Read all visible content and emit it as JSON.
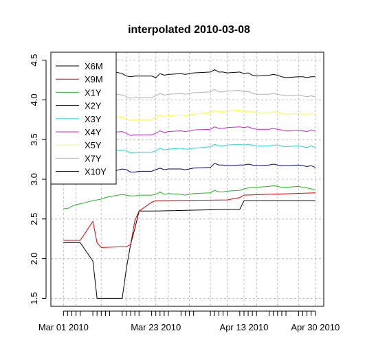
{
  "chart_data": {
    "type": "line",
    "title": "interpolated 2010-03-08",
    "xlabel": "",
    "ylabel": "",
    "ylim": [
      1.4,
      4.6
    ],
    "xlim": [
      "2010-02-26",
      "2010-05-02"
    ],
    "y_ticks": [
      1.5,
      2.0,
      2.5,
      3.0,
      3.5,
      4.0,
      4.5
    ],
    "y_tick_labels": [
      "1.5",
      "2.0",
      "2.5",
      "3.0",
      "3.5",
      "4.0",
      "4.5"
    ],
    "x_ticks": [
      "2010-03-01",
      "2010-03-23",
      "2010-04-13",
      "2010-04-30"
    ],
    "x_tick_labels": [
      "Mar 01 2010",
      "Mar 23 2010",
      "Apr 13 2010",
      "Apr 30 2010"
    ],
    "x_minor_ticks": [
      "2010-03-01",
      "2010-03-02",
      "2010-03-03",
      "2010-03-04",
      "2010-03-05",
      "2010-03-08",
      "2010-03-09",
      "2010-03-10",
      "2010-03-11",
      "2010-03-12",
      "2010-03-15",
      "2010-03-16",
      "2010-03-17",
      "2010-03-18",
      "2010-03-19",
      "2010-03-22",
      "2010-03-23",
      "2010-03-24",
      "2010-03-25",
      "2010-03-26",
      "2010-03-29",
      "2010-03-30",
      "2010-03-31",
      "2010-04-01",
      "2010-04-05",
      "2010-04-06",
      "2010-04-07",
      "2010-04-08",
      "2010-04-09",
      "2010-04-12",
      "2010-04-13",
      "2010-04-14",
      "2010-04-15",
      "2010-04-16",
      "2010-04-19",
      "2010-04-20",
      "2010-04-21",
      "2010-04-22",
      "2010-04-23",
      "2010-04-26",
      "2010-04-27",
      "2010-04-28",
      "2010-04-29",
      "2010-04-30"
    ],
    "x_grid": [
      "2010-03-01",
      "2010-03-04",
      "2010-03-10",
      "2010-03-16",
      "2010-03-19",
      "2010-03-23",
      "2010-03-26",
      "2010-03-31",
      "2010-04-05",
      "2010-04-09",
      "2010-04-13",
      "2010-04-16",
      "2010-04-21",
      "2010-04-26",
      "2010-04-30"
    ],
    "grid": true,
    "grid_color": "#bebebe",
    "legend": {
      "placement": "top-left"
    },
    "series": [
      {
        "name": "X6M",
        "color": "#000000",
        "x": [
          "2010-03-01",
          "2010-03-05",
          "2010-03-08",
          "2010-03-09",
          "2010-03-15",
          "2010-03-16",
          "2010-03-17",
          "2010-03-18",
          "2010-03-19",
          "2010-03-22",
          "2010-03-23",
          "2010-04-09",
          "2010-04-12",
          "2010-04-13",
          "2010-04-30"
        ],
        "y": [
          2.2,
          2.2,
          1.97,
          1.5,
          1.5,
          1.88,
          2.18,
          2.38,
          2.6,
          2.6,
          2.6,
          2.62,
          2.62,
          2.73,
          2.73
        ]
      },
      {
        "name": "X9M",
        "color": "#df0000",
        "x": [
          "2010-03-01",
          "2010-03-05",
          "2010-03-08",
          "2010-03-09",
          "2010-03-10",
          "2010-03-15",
          "2010-03-16",
          "2010-03-17",
          "2010-03-18",
          "2010-03-19",
          "2010-03-22",
          "2010-03-23",
          "2010-04-09",
          "2010-04-12",
          "2010-04-13",
          "2010-04-30"
        ],
        "y": [
          2.23,
          2.23,
          2.47,
          2.2,
          2.14,
          2.15,
          2.15,
          2.18,
          2.48,
          2.6,
          2.71,
          2.73,
          2.74,
          2.77,
          2.8,
          2.83
        ]
      },
      {
        "name": "X1Y",
        "color": "#22b422",
        "x": [
          "2010-03-01",
          "2010-03-02",
          "2010-03-03",
          "2010-03-04",
          "2010-03-05",
          "2010-03-08",
          "2010-03-09",
          "2010-03-10",
          "2010-03-11",
          "2010-03-12",
          "2010-03-15",
          "2010-03-16",
          "2010-03-17",
          "2010-03-18",
          "2010-03-19",
          "2010-03-22",
          "2010-03-23",
          "2010-03-24",
          "2010-03-25",
          "2010-03-26",
          "2010-03-29",
          "2010-03-30",
          "2010-03-31",
          "2010-04-01",
          "2010-04-05",
          "2010-04-06",
          "2010-04-07",
          "2010-04-08",
          "2010-04-09",
          "2010-04-12",
          "2010-04-13",
          "2010-04-14",
          "2010-04-15",
          "2010-04-16",
          "2010-04-19",
          "2010-04-20",
          "2010-04-21",
          "2010-04-22",
          "2010-04-23",
          "2010-04-26",
          "2010-04-27",
          "2010-04-28",
          "2010-04-29",
          "2010-04-30"
        ],
        "y": [
          2.63,
          2.63,
          2.66,
          2.68,
          2.69,
          2.73,
          2.74,
          2.75,
          2.77,
          2.78,
          2.81,
          2.8,
          2.79,
          2.79,
          2.8,
          2.8,
          2.81,
          2.84,
          2.81,
          2.82,
          2.81,
          2.8,
          2.81,
          2.82,
          2.83,
          2.86,
          2.84,
          2.84,
          2.85,
          2.86,
          2.88,
          2.89,
          2.9,
          2.9,
          2.91,
          2.92,
          2.91,
          2.9,
          2.9,
          2.91,
          2.9,
          2.89,
          2.88,
          2.86
        ]
      },
      {
        "name": "X2Y",
        "color": "#000080",
        "x": [
          "2010-03-01",
          "2010-03-02",
          "2010-03-03",
          "2010-03-04",
          "2010-03-05",
          "2010-03-08",
          "2010-03-09",
          "2010-03-10",
          "2010-03-11",
          "2010-03-12",
          "2010-03-15",
          "2010-03-16",
          "2010-03-17",
          "2010-03-18",
          "2010-03-19",
          "2010-03-22",
          "2010-03-23",
          "2010-03-24",
          "2010-03-25",
          "2010-03-26",
          "2010-03-29",
          "2010-03-30",
          "2010-03-31",
          "2010-04-01",
          "2010-04-05",
          "2010-04-06",
          "2010-04-07",
          "2010-04-08",
          "2010-04-09",
          "2010-04-12",
          "2010-04-13",
          "2010-04-14",
          "2010-04-15",
          "2010-04-16",
          "2010-04-19",
          "2010-04-20",
          "2010-04-21",
          "2010-04-22",
          "2010-04-23",
          "2010-04-26",
          "2010-04-27",
          "2010-04-28",
          "2010-04-29",
          "2010-04-30"
        ],
        "y": [
          2.98,
          2.99,
          2.97,
          3.0,
          3.0,
          3.04,
          3.05,
          3.06,
          3.08,
          3.09,
          3.13,
          3.12,
          3.09,
          3.09,
          3.1,
          3.1,
          3.12,
          3.14,
          3.12,
          3.13,
          3.13,
          3.12,
          3.13,
          3.14,
          3.15,
          3.2,
          3.18,
          3.18,
          3.17,
          3.18,
          3.18,
          3.19,
          3.18,
          3.17,
          3.18,
          3.19,
          3.18,
          3.17,
          3.17,
          3.18,
          3.17,
          3.16,
          3.17,
          3.15
        ]
      },
      {
        "name": "X3Y",
        "color": "#22d4d4",
        "x": [
          "2010-03-01",
          "2010-03-02",
          "2010-03-03",
          "2010-03-04",
          "2010-03-05",
          "2010-03-08",
          "2010-03-09",
          "2010-03-10",
          "2010-03-11",
          "2010-03-12",
          "2010-03-15",
          "2010-03-16",
          "2010-03-17",
          "2010-03-18",
          "2010-03-19",
          "2010-03-22",
          "2010-03-23",
          "2010-03-24",
          "2010-03-25",
          "2010-03-26",
          "2010-03-29",
          "2010-03-30",
          "2010-03-31",
          "2010-04-01",
          "2010-04-05",
          "2010-04-06",
          "2010-04-07",
          "2010-04-08",
          "2010-04-09",
          "2010-04-12",
          "2010-04-13",
          "2010-04-14",
          "2010-04-15",
          "2010-04-16",
          "2010-04-19",
          "2010-04-20",
          "2010-04-21",
          "2010-04-22",
          "2010-04-23",
          "2010-04-26",
          "2010-04-27",
          "2010-04-28",
          "2010-04-29",
          "2010-04-30"
        ],
        "y": [
          3.25,
          3.26,
          3.24,
          3.27,
          3.28,
          3.3,
          3.31,
          3.32,
          3.34,
          3.35,
          3.37,
          3.36,
          3.33,
          3.34,
          3.34,
          3.34,
          3.36,
          3.39,
          3.37,
          3.38,
          3.39,
          3.38,
          3.38,
          3.39,
          3.41,
          3.44,
          3.42,
          3.42,
          3.43,
          3.44,
          3.43,
          3.44,
          3.43,
          3.42,
          3.42,
          3.43,
          3.43,
          3.42,
          3.41,
          3.42,
          3.41,
          3.4,
          3.42,
          3.4
        ]
      },
      {
        "name": "X4Y",
        "color": "#cc22cc",
        "x": [
          "2010-03-01",
          "2010-03-02",
          "2010-03-03",
          "2010-03-04",
          "2010-03-05",
          "2010-03-08",
          "2010-03-09",
          "2010-03-10",
          "2010-03-11",
          "2010-03-12",
          "2010-03-15",
          "2010-03-16",
          "2010-03-17",
          "2010-03-18",
          "2010-03-19",
          "2010-03-22",
          "2010-03-23",
          "2010-03-24",
          "2010-03-25",
          "2010-03-26",
          "2010-03-29",
          "2010-03-30",
          "2010-03-31",
          "2010-04-01",
          "2010-04-05",
          "2010-04-06",
          "2010-04-07",
          "2010-04-08",
          "2010-04-09",
          "2010-04-12",
          "2010-04-13",
          "2010-04-14",
          "2010-04-15",
          "2010-04-16",
          "2010-04-19",
          "2010-04-20",
          "2010-04-21",
          "2010-04-22",
          "2010-04-23",
          "2010-04-26",
          "2010-04-27",
          "2010-04-28",
          "2010-04-29",
          "2010-04-30"
        ],
        "y": [
          3.58,
          3.59,
          3.57,
          3.6,
          3.6,
          3.53,
          3.55,
          3.56,
          3.58,
          3.59,
          3.6,
          3.58,
          3.55,
          3.56,
          3.56,
          3.56,
          3.58,
          3.61,
          3.59,
          3.6,
          3.61,
          3.6,
          3.61,
          3.62,
          3.63,
          3.66,
          3.64,
          3.64,
          3.65,
          3.66,
          3.65,
          3.66,
          3.64,
          3.63,
          3.63,
          3.64,
          3.63,
          3.62,
          3.61,
          3.62,
          3.61,
          3.6,
          3.62,
          3.61
        ]
      },
      {
        "name": "X5Y",
        "color": "#ffff22",
        "x": [
          "2010-03-01",
          "2010-03-02",
          "2010-03-03",
          "2010-03-04",
          "2010-03-05",
          "2010-03-08",
          "2010-03-09",
          "2010-03-10",
          "2010-03-11",
          "2010-03-12",
          "2010-03-15",
          "2010-03-16",
          "2010-03-17",
          "2010-03-18",
          "2010-03-19",
          "2010-03-22",
          "2010-03-23",
          "2010-03-24",
          "2010-03-25",
          "2010-03-26",
          "2010-03-29",
          "2010-03-30",
          "2010-03-31",
          "2010-04-01",
          "2010-04-05",
          "2010-04-06",
          "2010-04-07",
          "2010-04-08",
          "2010-04-09",
          "2010-04-12",
          "2010-04-13",
          "2010-04-14",
          "2010-04-15",
          "2010-04-16",
          "2010-04-19",
          "2010-04-20",
          "2010-04-21",
          "2010-04-22",
          "2010-04-23",
          "2010-04-26",
          "2010-04-27",
          "2010-04-28",
          "2010-04-29",
          "2010-04-30"
        ],
        "y": [
          3.8,
          3.82,
          3.79,
          3.71,
          3.7,
          3.72,
          3.74,
          3.76,
          3.78,
          3.8,
          3.78,
          3.76,
          3.74,
          3.75,
          3.75,
          3.75,
          3.78,
          3.81,
          3.79,
          3.8,
          3.81,
          3.8,
          3.81,
          3.82,
          3.84,
          3.87,
          3.85,
          3.85,
          3.86,
          3.87,
          3.85,
          3.86,
          3.85,
          3.84,
          3.84,
          3.85,
          3.84,
          3.83,
          3.82,
          3.83,
          3.82,
          3.81,
          3.83,
          3.82
        ]
      },
      {
        "name": "X7Y",
        "color": "#b0b0b0",
        "x": [
          "2010-03-01",
          "2010-03-02",
          "2010-03-03",
          "2010-03-04",
          "2010-03-05",
          "2010-03-08",
          "2010-03-09",
          "2010-03-10",
          "2010-03-11",
          "2010-03-12",
          "2010-03-15",
          "2010-03-16",
          "2010-03-17",
          "2010-03-18",
          "2010-03-19",
          "2010-03-22",
          "2010-03-23",
          "2010-03-24",
          "2010-03-25",
          "2010-03-26",
          "2010-03-29",
          "2010-03-30",
          "2010-03-31",
          "2010-04-01",
          "2010-04-05",
          "2010-04-06",
          "2010-04-07",
          "2010-04-08",
          "2010-04-09",
          "2010-04-12",
          "2010-04-13",
          "2010-04-14",
          "2010-04-15",
          "2010-04-16",
          "2010-04-19",
          "2010-04-20",
          "2010-04-21",
          "2010-04-22",
          "2010-04-23",
          "2010-04-26",
          "2010-04-27",
          "2010-04-28",
          "2010-04-29",
          "2010-04-30"
        ],
        "y": [
          4.08,
          4.09,
          4.06,
          4.07,
          4.08,
          4.03,
          4.04,
          4.06,
          4.08,
          4.09,
          4.06,
          4.04,
          4.02,
          4.03,
          4.03,
          4.03,
          4.05,
          4.08,
          4.06,
          4.07,
          4.08,
          4.07,
          4.08,
          4.09,
          4.1,
          4.13,
          4.1,
          4.1,
          4.11,
          4.12,
          4.1,
          4.11,
          4.08,
          4.07,
          4.07,
          4.08,
          4.07,
          4.06,
          4.05,
          4.06,
          4.05,
          4.04,
          4.05,
          4.04
        ]
      },
      {
        "name": "X10Y",
        "color": "#000000",
        "x": [
          "2010-03-01",
          "2010-03-02",
          "2010-03-03",
          "2010-03-04",
          "2010-03-05",
          "2010-03-08",
          "2010-03-09",
          "2010-03-10",
          "2010-03-11",
          "2010-03-12",
          "2010-03-15",
          "2010-03-16",
          "2010-03-17",
          "2010-03-18",
          "2010-03-19",
          "2010-03-22",
          "2010-03-23",
          "2010-03-24",
          "2010-03-25",
          "2010-03-26",
          "2010-03-29",
          "2010-03-30",
          "2010-03-31",
          "2010-04-01",
          "2010-04-05",
          "2010-04-06",
          "2010-04-07",
          "2010-04-08",
          "2010-04-09",
          "2010-04-12",
          "2010-04-13",
          "2010-04-14",
          "2010-04-15",
          "2010-04-16",
          "2010-04-19",
          "2010-04-20",
          "2010-04-21",
          "2010-04-22",
          "2010-04-23",
          "2010-04-26",
          "2010-04-27",
          "2010-04-28",
          "2010-04-29",
          "2010-04-30"
        ],
        "y": [
          4.48,
          4.46,
          4.43,
          4.34,
          4.33,
          4.35,
          4.36,
          4.34,
          4.36,
          4.37,
          4.33,
          4.3,
          4.29,
          4.3,
          4.3,
          4.3,
          4.28,
          4.33,
          4.31,
          4.32,
          4.33,
          4.32,
          4.33,
          4.34,
          4.35,
          4.38,
          4.35,
          4.35,
          4.34,
          4.35,
          4.33,
          4.34,
          4.31,
          4.3,
          4.31,
          4.32,
          4.31,
          4.29,
          4.28,
          4.29,
          4.29,
          4.28,
          4.29,
          4.29
        ]
      }
    ]
  }
}
